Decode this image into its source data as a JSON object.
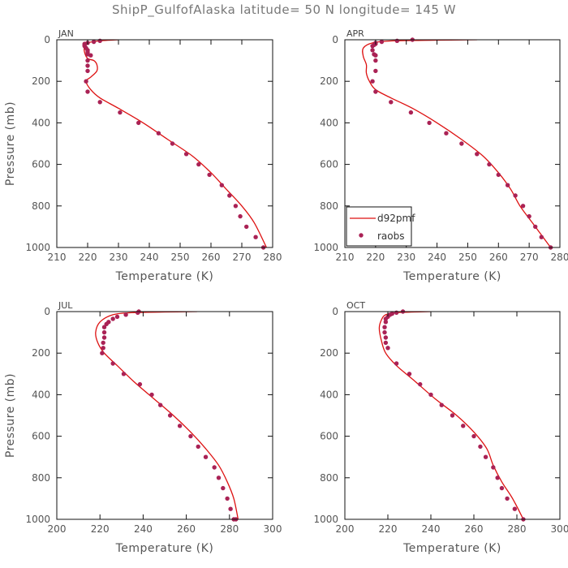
{
  "title": "ShipP_GulfofAlaska   latitude= 50 N longitude= 145 W",
  "colors": {
    "model": "#dd1111",
    "obs": "#aa2255",
    "frame": "#111111",
    "text": "#555555"
  },
  "legend": {
    "model_label": "d92pmf",
    "obs_label": "raobs",
    "panel": "APR",
    "placement": "lower-left"
  },
  "chart_data": [
    {
      "type": "line",
      "panel": "JAN",
      "xlabel": "Temperature (K)",
      "ylabel": "Pressure (mb)",
      "xlim": [
        210,
        280
      ],
      "xticks": [
        210,
        220,
        230,
        240,
        250,
        260,
        270,
        280
      ],
      "ylim": [
        1000,
        0
      ],
      "yticks": [
        0,
        200,
        400,
        600,
        800,
        1000
      ],
      "series": [
        {
          "name": "d92pmf",
          "style": "line",
          "x": [
            230,
            224,
            220,
            219,
            219,
            220,
            222,
            223,
            223,
            221,
            219.5,
            221,
            224,
            230,
            238,
            246,
            254,
            260,
            265,
            270,
            274,
            278
          ],
          "y": [
            0,
            5,
            15,
            30,
            60,
            90,
            100,
            120,
            150,
            180,
            200,
            240,
            280,
            330,
            400,
            480,
            560,
            640,
            720,
            800,
            880,
            1000
          ]
        },
        {
          "name": "raobs",
          "style": "markers",
          "x": [
            224,
            222,
            220,
            219,
            219,
            219,
            219.5,
            220,
            220,
            220,
            221,
            220,
            220,
            220,
            219.5,
            220,
            224,
            230.5,
            236.5,
            243,
            247.5,
            252,
            256,
            259.5,
            263.5,
            266,
            268,
            269.5,
            271.5,
            274.5,
            277
          ],
          "y": [
            5,
            10,
            15,
            20,
            25,
            30,
            40,
            50,
            60,
            70,
            75,
            100,
            125,
            150,
            200,
            250,
            300,
            350,
            400,
            450,
            500,
            550,
            600,
            650,
            700,
            750,
            800,
            850,
            900,
            950,
            1000
          ]
        }
      ]
    },
    {
      "type": "line",
      "panel": "APR",
      "xlabel": "Temperature (K)",
      "ylabel": "",
      "xlim": [
        210,
        280
      ],
      "xticks": [
        210,
        220,
        230,
        240,
        250,
        260,
        270,
        280
      ],
      "ylim": [
        1000,
        0
      ],
      "yticks": [
        0,
        200,
        400,
        600,
        800,
        1000
      ],
      "series": [
        {
          "name": "d92pmf",
          "style": "line",
          "x": [
            253,
            240,
            226,
            219,
            216,
            216,
            217,
            217,
            218,
            220,
            225,
            232,
            240,
            248,
            255,
            260,
            264,
            267,
            271,
            274,
            277
          ],
          "y": [
            0,
            2,
            5,
            15,
            40,
            80,
            120,
            160,
            200,
            240,
            280,
            330,
            400,
            480,
            560,
            640,
            720,
            800,
            880,
            940,
            1000
          ]
        },
        {
          "name": "raobs",
          "style": "markers",
          "x": [
            232,
            227,
            222,
            220,
            220,
            219.5,
            219,
            219,
            219.5,
            220,
            220,
            220,
            219,
            220,
            225,
            231.5,
            237.5,
            243,
            248,
            253,
            257,
            260,
            263,
            265.5,
            268,
            270,
            272,
            274,
            277
          ],
          "y": [
            0,
            5,
            10,
            15,
            20,
            25,
            30,
            50,
            70,
            75,
            100,
            150,
            200,
            250,
            300,
            350,
            400,
            450,
            500,
            550,
            600,
            650,
            700,
            750,
            800,
            850,
            900,
            950,
            1000
          ]
        }
      ]
    },
    {
      "type": "line",
      "panel": "JUL",
      "xlabel": "Temperature (K)",
      "ylabel": "Pressure (mb)",
      "xlim": [
        200,
        300
      ],
      "xticks": [
        200,
        220,
        240,
        260,
        280,
        300
      ],
      "ylim": [
        1000,
        0
      ],
      "yticks": [
        0,
        200,
        400,
        600,
        800,
        1000
      ],
      "series": [
        {
          "name": "d92pmf",
          "style": "line",
          "x": [
            265,
            250,
            235,
            226,
            220,
            218,
            219,
            222,
            228,
            236,
            245,
            254,
            262,
            269,
            275,
            279,
            282,
            284
          ],
          "y": [
            0,
            2,
            5,
            15,
            50,
            100,
            150,
            200,
            260,
            340,
            420,
            500,
            580,
            660,
            740,
            820,
            900,
            1000
          ]
        },
        {
          "name": "raobs",
          "style": "markers",
          "x": [
            238,
            237.5,
            232,
            228,
            226,
            224,
            223,
            222,
            222,
            222,
            221.5,
            221.5,
            221,
            226,
            231,
            238.5,
            244,
            248,
            252.5,
            257,
            262,
            265.5,
            269,
            273,
            275,
            277,
            279,
            280.5,
            282,
            283
          ],
          "y": [
            0,
            5,
            15,
            25,
            35,
            50,
            60,
            75,
            100,
            125,
            150,
            175,
            200,
            250,
            300,
            350,
            400,
            450,
            500,
            550,
            600,
            650,
            700,
            750,
            800,
            850,
            900,
            950,
            1000,
            1000
          ]
        }
      ]
    },
    {
      "type": "line",
      "panel": "OCT",
      "xlabel": "Temperature (K)",
      "ylabel": "",
      "xlim": [
        200,
        300
      ],
      "xticks": [
        200,
        220,
        240,
        260,
        280,
        300
      ],
      "ylim": [
        1000,
        0
      ],
      "yticks": [
        0,
        200,
        400,
        600,
        800,
        1000
      ],
      "series": [
        {
          "name": "d92pmf",
          "style": "line",
          "x": [
            240,
            232,
            224,
            219,
            217,
            216,
            217,
            219,
            224,
            232,
            242,
            252,
            260,
            266,
            269,
            273,
            278,
            283
          ],
          "y": [
            0,
            2,
            5,
            15,
            40,
            80,
            140,
            200,
            260,
            330,
            420,
            500,
            580,
            660,
            740,
            820,
            900,
            1000
          ]
        },
        {
          "name": "raobs",
          "style": "markers",
          "x": [
            227,
            224,
            222,
            221,
            220,
            219,
            219,
            218.5,
            218.5,
            219,
            219,
            220,
            224,
            230,
            235,
            240,
            245,
            250,
            255,
            260,
            263,
            265.5,
            269,
            271,
            273,
            275.5,
            279,
            283
          ],
          "y": [
            0,
            5,
            10,
            15,
            25,
            35,
            50,
            75,
            100,
            125,
            150,
            175,
            250,
            300,
            350,
            400,
            450,
            500,
            550,
            600,
            650,
            700,
            750,
            800,
            850,
            900,
            950,
            1000
          ]
        }
      ]
    }
  ]
}
